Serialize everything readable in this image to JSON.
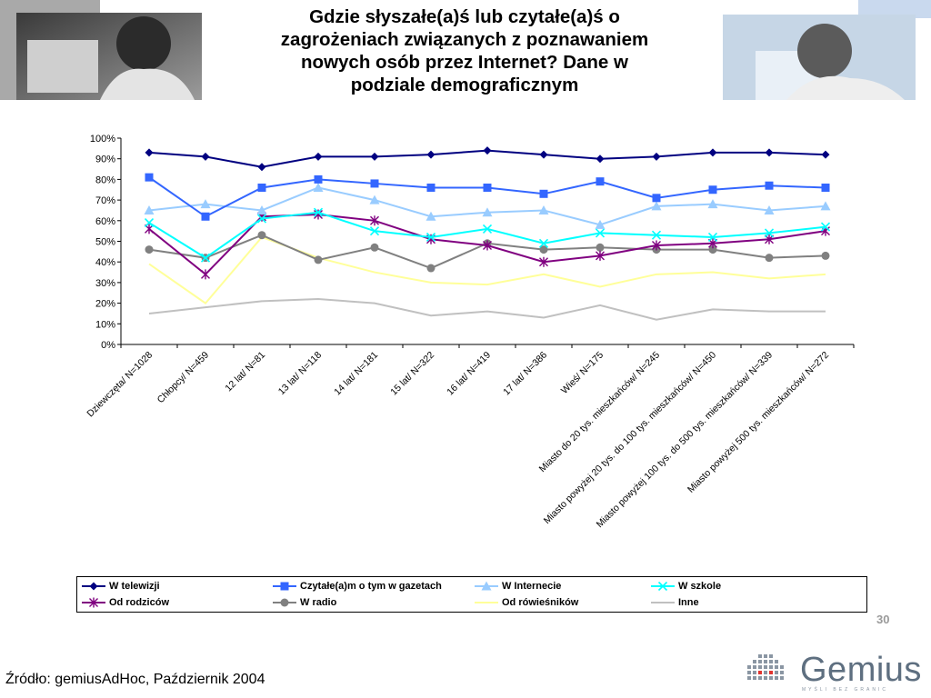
{
  "slide": {
    "title_lines": [
      "Gdzie słyszałe(a)ś lub czytałe(a)ś o",
      "zagrożeniach związanych z poznawaniem",
      "nowych osób przez Internet? Dane w",
      "podziale demograficznym"
    ],
    "page_number": "30",
    "source": "Źródło: gemiusAdHoc, Październik 2004",
    "logo_text": "Gemius",
    "logo_tagline": "MYŚLI BEZ GRANIC"
  },
  "chart_data": {
    "type": "line",
    "title": "",
    "xlabel": "",
    "ylabel": "",
    "ylim": [
      0,
      100
    ],
    "y_ticks": [
      "0%",
      "10%",
      "20%",
      "30%",
      "40%",
      "50%",
      "60%",
      "70%",
      "80%",
      "90%",
      "100%"
    ],
    "y_tick_values": [
      0,
      10,
      20,
      30,
      40,
      50,
      60,
      70,
      80,
      90,
      100
    ],
    "grid": false,
    "legend_position": "bottom",
    "categories": [
      "Dziewczęta/ N=1028",
      "Chłopcy/ N=459",
      "12 lat/ N=81",
      "13 lat/ N=118",
      "14 lat/ N=181",
      "15 lat/ N=322",
      "16 lat/ N=419",
      "17 lat/ N=386",
      "Wieś/ N=175",
      "Miasto do 20 tys. mieszkańców/ N=245",
      "Miasto powyżej 20 tys. do 100 tys. mieszkańców/ N=450",
      "Miasto powyżej 100 tys. do 500 tys. mieszkańców/ N=339",
      "Miasto powyżej 500 tys. mieszkańców/ N=272"
    ],
    "series": [
      {
        "name": "W telewizji",
        "color": "#000080",
        "marker": "diamond",
        "values": [
          93,
          91,
          86,
          91,
          91,
          92,
          94,
          92,
          90,
          91,
          93,
          93,
          92
        ]
      },
      {
        "name": "Czytałe(a)m o tym w gazetach",
        "color": "#3366ff",
        "marker": "square",
        "values": [
          81,
          62,
          76,
          80,
          78,
          76,
          76,
          73,
          79,
          71,
          75,
          77,
          76
        ]
      },
      {
        "name": "W Internecie",
        "color": "#99ccff",
        "marker": "triangle",
        "values": [
          65,
          68,
          65,
          76,
          70,
          62,
          64,
          65,
          58,
          67,
          68,
          65,
          67
        ]
      },
      {
        "name": "W szkole",
        "color": "#00ffff",
        "marker": "x",
        "values": [
          59,
          42,
          61,
          64,
          55,
          52,
          56,
          49,
          54,
          53,
          52,
          54,
          57
        ]
      },
      {
        "name": "Od rodziców",
        "color": "#800080",
        "marker": "star",
        "values": [
          56,
          34,
          62,
          63,
          60,
          51,
          48,
          40,
          43,
          48,
          49,
          51,
          55
        ]
      },
      {
        "name": "W radio",
        "color": "#808080",
        "marker": "circle",
        "values": [
          46,
          42,
          53,
          41,
          47,
          37,
          49,
          46,
          47,
          46,
          46,
          42,
          43
        ]
      },
      {
        "name": "Od rówieśników",
        "color": "#ffff99",
        "marker": "none",
        "values": [
          39,
          20,
          52,
          42,
          35,
          30,
          29,
          34,
          28,
          34,
          35,
          32,
          34
        ]
      },
      {
        "name": "Inne",
        "color": "#c0c0c0",
        "marker": "none",
        "values": [
          15,
          18,
          21,
          22,
          20,
          14,
          16,
          13,
          19,
          12,
          17,
          16,
          16
        ]
      }
    ]
  }
}
